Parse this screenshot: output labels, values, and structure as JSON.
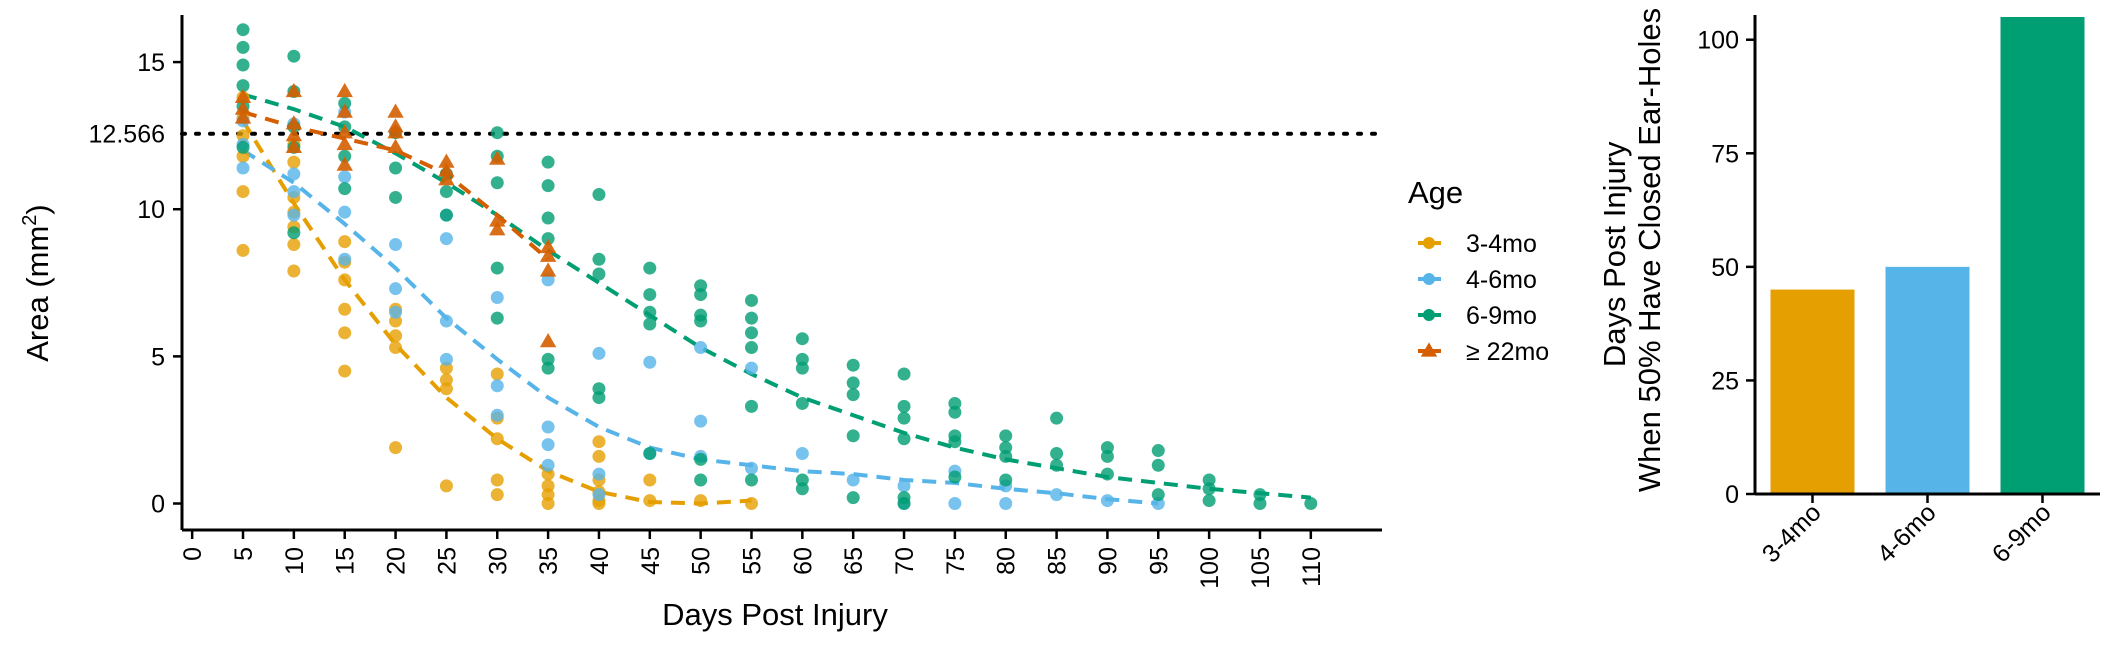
{
  "colors": {
    "3-4mo": "#E69F00",
    "4-6mo": "#56B4E9",
    "6-9mo": "#009E73",
    "≥ 22mo": "#D55E00"
  },
  "chart_data": [
    {
      "type": "scatter",
      "xlabel": "Days Post Injury",
      "ylabel_main": "Area (mm",
      "ylabel_sup": "2",
      "ylabel_close": ")",
      "xlim": [
        -1,
        117
      ],
      "ylim": [
        -0.9,
        16.6
      ],
      "x_ticks": [
        0,
        5,
        10,
        15,
        20,
        25,
        30,
        35,
        40,
        45,
        50,
        55,
        60,
        65,
        70,
        75,
        80,
        85,
        90,
        95,
        100,
        105,
        110
      ],
      "y_ticks": [
        0,
        5,
        10,
        15
      ],
      "reference_line": {
        "y": 12.566,
        "label": "12.566",
        "style": "dotted"
      },
      "legend": {
        "title": "Age",
        "position": "right"
      },
      "series": [
        {
          "name": "3-4mo",
          "marker": "circle",
          "points": [
            [
              5,
              13.8
            ],
            [
              5,
              13.1
            ],
            [
              5,
              12.5
            ],
            [
              5,
              11.8
            ],
            [
              5,
              10.6
            ],
            [
              5,
              8.6
            ],
            [
              10,
              12.2
            ],
            [
              10,
              11.6
            ],
            [
              10,
              10.4
            ],
            [
              10,
              9.9
            ],
            [
              10,
              9.4
            ],
            [
              10,
              8.8
            ],
            [
              10,
              7.9
            ],
            [
              15,
              8.9
            ],
            [
              15,
              8.2
            ],
            [
              15,
              7.6
            ],
            [
              15,
              6.6
            ],
            [
              15,
              5.8
            ],
            [
              15,
              4.5
            ],
            [
              20,
              6.6
            ],
            [
              20,
              6.2
            ],
            [
              20,
              5.7
            ],
            [
              20,
              5.3
            ],
            [
              20,
              1.9
            ],
            [
              25,
              4.6
            ],
            [
              25,
              4.2
            ],
            [
              25,
              3.9
            ],
            [
              25,
              0.6
            ],
            [
              30,
              4.4
            ],
            [
              30,
              2.9
            ],
            [
              30,
              2.2
            ],
            [
              30,
              0.8
            ],
            [
              30,
              0.3
            ],
            [
              35,
              1.0
            ],
            [
              35,
              0.6
            ],
            [
              35,
              0.3
            ],
            [
              35,
              0.0
            ],
            [
              40,
              2.1
            ],
            [
              40,
              1.6
            ],
            [
              40,
              0.8
            ],
            [
              40,
              0.4
            ],
            [
              40,
              0.1
            ],
            [
              40,
              0.0
            ],
            [
              45,
              0.8
            ],
            [
              45,
              0.1
            ],
            [
              50,
              0.1
            ],
            [
              55,
              0.0
            ]
          ],
          "fit": [
            [
              5,
              13.0
            ],
            [
              10,
              10.2
            ],
            [
              15,
              7.6
            ],
            [
              20,
              5.4
            ],
            [
              25,
              3.6
            ],
            [
              30,
              2.2
            ],
            [
              35,
              1.1
            ],
            [
              40,
              0.4
            ],
            [
              45,
              0.05
            ],
            [
              50,
              0.0
            ],
            [
              55,
              0.1
            ]
          ]
        },
        {
          "name": "4-6mo",
          "marker": "circle",
          "points": [
            [
              5,
              13.0
            ],
            [
              5,
              12.2
            ],
            [
              5,
              11.4
            ],
            [
              10,
              12.9
            ],
            [
              10,
              11.2
            ],
            [
              10,
              10.6
            ],
            [
              10,
              9.8
            ],
            [
              15,
              13.3
            ],
            [
              15,
              11.1
            ],
            [
              15,
              9.9
            ],
            [
              15,
              8.3
            ],
            [
              20,
              8.8
            ],
            [
              20,
              7.3
            ],
            [
              20,
              6.5
            ],
            [
              25,
              9.8
            ],
            [
              25,
              9.0
            ],
            [
              25,
              6.2
            ],
            [
              25,
              4.9
            ],
            [
              30,
              7.0
            ],
            [
              30,
              4.0
            ],
            [
              30,
              3.0
            ],
            [
              35,
              7.6
            ],
            [
              35,
              2.6
            ],
            [
              35,
              2.0
            ],
            [
              35,
              1.3
            ],
            [
              40,
              5.1
            ],
            [
              40,
              1.0
            ],
            [
              40,
              0.3
            ],
            [
              45,
              4.8
            ],
            [
              45,
              1.7
            ],
            [
              50,
              5.3
            ],
            [
              50,
              2.8
            ],
            [
              50,
              1.6
            ],
            [
              55,
              4.6
            ],
            [
              55,
              1.2
            ],
            [
              60,
              1.7
            ],
            [
              65,
              0.8
            ],
            [
              70,
              0.6
            ],
            [
              70,
              0.0
            ],
            [
              75,
              1.1
            ],
            [
              75,
              0.0
            ],
            [
              80,
              0.6
            ],
            [
              80,
              0.0
            ],
            [
              85,
              0.3
            ],
            [
              90,
              0.1
            ],
            [
              95,
              0.0
            ]
          ],
          "fit": [
            [
              5,
              12.0
            ],
            [
              10,
              10.9
            ],
            [
              15,
              9.5
            ],
            [
              20,
              8.0
            ],
            [
              25,
              6.3
            ],
            [
              30,
              4.9
            ],
            [
              35,
              3.6
            ],
            [
              40,
              2.6
            ],
            [
              45,
              1.9
            ],
            [
              50,
              1.5
            ],
            [
              55,
              1.3
            ],
            [
              60,
              1.1
            ],
            [
              65,
              1.0
            ],
            [
              70,
              0.8
            ],
            [
              75,
              0.7
            ],
            [
              80,
              0.5
            ],
            [
              85,
              0.35
            ],
            [
              90,
              0.15
            ],
            [
              95,
              0.0
            ]
          ]
        },
        {
          "name": "6-9mo",
          "marker": "circle",
          "points": [
            [
              5,
              16.1
            ],
            [
              5,
              15.5
            ],
            [
              5,
              14.9
            ],
            [
              5,
              14.2
            ],
            [
              5,
              13.5
            ],
            [
              5,
              12.1
            ],
            [
              10,
              15.2
            ],
            [
              10,
              14.0
            ],
            [
              10,
              12.8
            ],
            [
              10,
              12.1
            ],
            [
              10,
              9.2
            ],
            [
              15,
              13.6
            ],
            [
              15,
              12.8
            ],
            [
              15,
              11.8
            ],
            [
              15,
              10.7
            ],
            [
              20,
              12.6
            ],
            [
              20,
              11.4
            ],
            [
              20,
              10.4
            ],
            [
              25,
              11.2
            ],
            [
              25,
              10.6
            ],
            [
              25,
              9.8
            ],
            [
              30,
              12.6
            ],
            [
              30,
              11.8
            ],
            [
              30,
              10.9
            ],
            [
              30,
              8.0
            ],
            [
              30,
              6.3
            ],
            [
              35,
              11.6
            ],
            [
              35,
              10.8
            ],
            [
              35,
              9.7
            ],
            [
              35,
              9.0
            ],
            [
              35,
              4.9
            ],
            [
              35,
              4.6
            ],
            [
              40,
              10.5
            ],
            [
              40,
              8.3
            ],
            [
              40,
              7.8
            ],
            [
              40,
              3.9
            ],
            [
              40,
              3.6
            ],
            [
              45,
              8.0
            ],
            [
              45,
              7.1
            ],
            [
              45,
              6.5
            ],
            [
              45,
              6.1
            ],
            [
              45,
              1.7
            ],
            [
              50,
              7.4
            ],
            [
              50,
              7.1
            ],
            [
              50,
              6.4
            ],
            [
              50,
              6.2
            ],
            [
              50,
              1.5
            ],
            [
              50,
              0.8
            ],
            [
              55,
              6.9
            ],
            [
              55,
              6.3
            ],
            [
              55,
              5.8
            ],
            [
              55,
              5.3
            ],
            [
              55,
              3.3
            ],
            [
              55,
              0.8
            ],
            [
              60,
              5.6
            ],
            [
              60,
              4.9
            ],
            [
              60,
              4.6
            ],
            [
              60,
              3.4
            ],
            [
              60,
              0.8
            ],
            [
              60,
              0.5
            ],
            [
              65,
              4.7
            ],
            [
              65,
              4.1
            ],
            [
              65,
              3.7
            ],
            [
              65,
              2.3
            ],
            [
              65,
              0.2
            ],
            [
              70,
              4.4
            ],
            [
              70,
              3.3
            ],
            [
              70,
              2.9
            ],
            [
              70,
              2.2
            ],
            [
              70,
              0.2
            ],
            [
              70,
              0.0
            ],
            [
              75,
              3.4
            ],
            [
              75,
              3.1
            ],
            [
              75,
              2.3
            ],
            [
              75,
              2.1
            ],
            [
              75,
              0.9
            ],
            [
              80,
              2.3
            ],
            [
              80,
              1.9
            ],
            [
              80,
              1.6
            ],
            [
              80,
              0.8
            ],
            [
              85,
              2.9
            ],
            [
              85,
              1.7
            ],
            [
              85,
              1.3
            ],
            [
              90,
              1.9
            ],
            [
              90,
              1.6
            ],
            [
              90,
              1.0
            ],
            [
              95,
              1.8
            ],
            [
              95,
              1.3
            ],
            [
              95,
              0.3
            ],
            [
              100,
              0.8
            ],
            [
              100,
              0.5
            ],
            [
              100,
              0.1
            ],
            [
              105,
              0.3
            ],
            [
              105,
              0.0
            ],
            [
              110,
              0.0
            ]
          ],
          "fit": [
            [
              5,
              13.9
            ],
            [
              10,
              13.4
            ],
            [
              15,
              12.8
            ],
            [
              20,
              11.9
            ],
            [
              25,
              10.9
            ],
            [
              30,
              9.8
            ],
            [
              35,
              8.6
            ],
            [
              40,
              7.5
            ],
            [
              45,
              6.4
            ],
            [
              50,
              5.3
            ],
            [
              55,
              4.4
            ],
            [
              60,
              3.6
            ],
            [
              65,
              3.0
            ],
            [
              70,
              2.4
            ],
            [
              75,
              1.9
            ],
            [
              80,
              1.5
            ],
            [
              85,
              1.2
            ],
            [
              90,
              0.9
            ],
            [
              95,
              0.7
            ],
            [
              100,
              0.5
            ],
            [
              105,
              0.35
            ],
            [
              110,
              0.2
            ]
          ]
        },
        {
          "name": "≥ 22mo",
          "marker": "triangle",
          "points": [
            [
              5,
              13.8
            ],
            [
              5,
              13.4
            ],
            [
              5,
              13.1
            ],
            [
              10,
              14.0
            ],
            [
              10,
              12.9
            ],
            [
              10,
              12.5
            ],
            [
              10,
              12.1
            ],
            [
              15,
              14.0
            ],
            [
              15,
              13.3
            ],
            [
              15,
              12.6
            ],
            [
              15,
              12.2
            ],
            [
              15,
              11.5
            ],
            [
              20,
              13.3
            ],
            [
              20,
              12.8
            ],
            [
              20,
              12.6
            ],
            [
              20,
              12.1
            ],
            [
              25,
              11.6
            ],
            [
              25,
              11.3
            ],
            [
              25,
              11.0
            ],
            [
              30,
              11.7
            ],
            [
              30,
              9.6
            ],
            [
              30,
              9.3
            ],
            [
              35,
              8.7
            ],
            [
              35,
              8.4
            ],
            [
              35,
              7.9
            ],
            [
              35,
              5.5
            ]
          ],
          "fit": [
            [
              5,
              13.3
            ],
            [
              10,
              12.8
            ],
            [
              15,
              12.4
            ],
            [
              20,
              12.0
            ],
            [
              25,
              11.2
            ],
            [
              30,
              9.8
            ],
            [
              35,
              8.3
            ]
          ]
        }
      ]
    },
    {
      "type": "bar",
      "ylabel_line1": "Days Post Injury",
      "ylabel_line2": "When 50% Have Closed Ear-Holes",
      "categories": [
        "3-4mo",
        "4-6mo",
        "6-9mo"
      ],
      "values": [
        45,
        50,
        105
      ],
      "ylim": [
        0,
        105
      ],
      "y_ticks": [
        0,
        25,
        50,
        75,
        100
      ]
    }
  ]
}
